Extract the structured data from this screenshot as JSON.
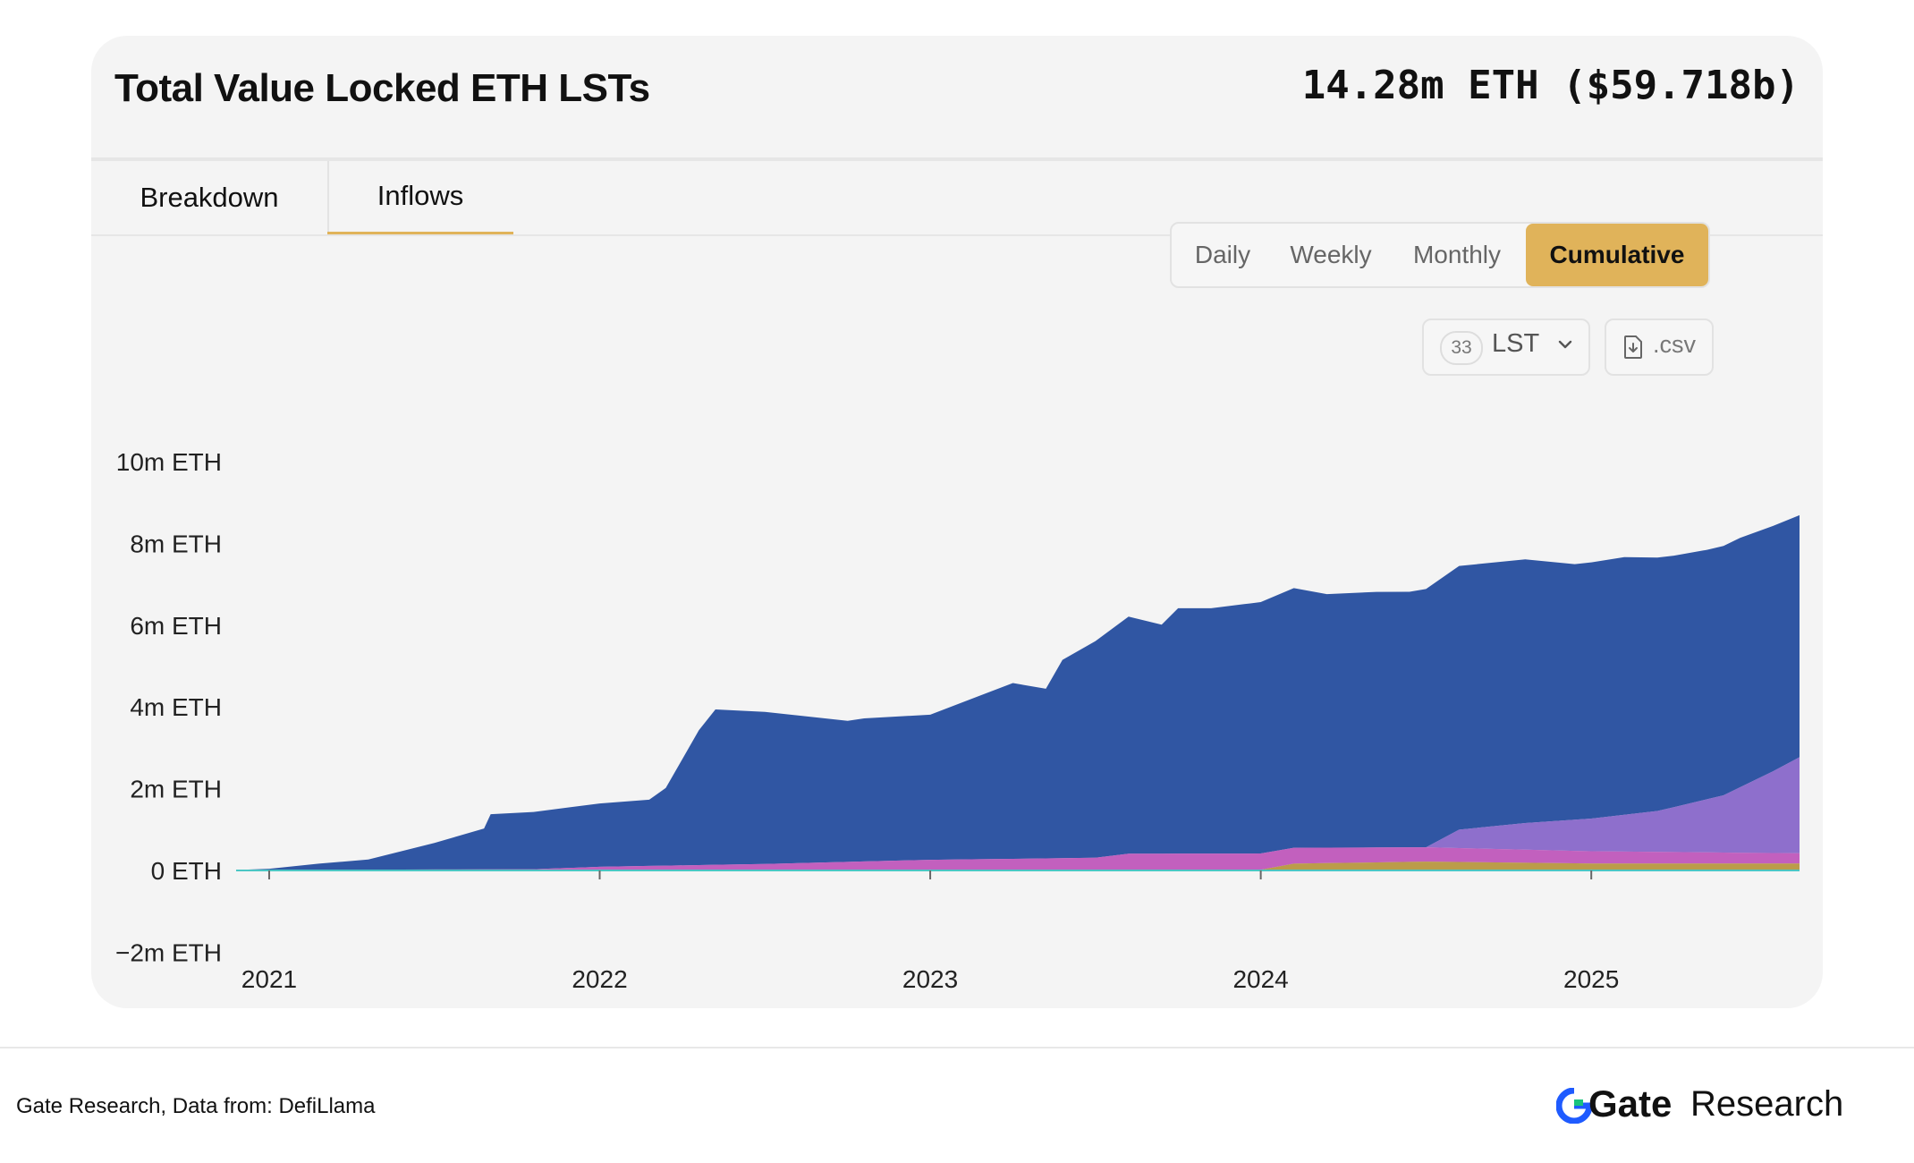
{
  "header": {
    "title": "Total Value Locked ETH LSTs",
    "total": "14.28m ETH ($59.718b)"
  },
  "tabs": [
    {
      "label": "Breakdown",
      "active": false
    },
    {
      "label": "Inflows",
      "active": true
    }
  ],
  "period_options": [
    {
      "label": "Daily",
      "active": false
    },
    {
      "label": "Weekly",
      "active": false
    },
    {
      "label": "Monthly",
      "active": false
    },
    {
      "label": "Cumulative",
      "active": true
    }
  ],
  "lst_filter": {
    "count": "33",
    "label": "LST"
  },
  "csv_button": {
    "label": ".csv"
  },
  "footer": {
    "source": "Gate Research, Data from: DefiLlama",
    "brand_gate": "Gate",
    "brand_research": "Research"
  },
  "colors": {
    "accent": "#e0b35a",
    "series_main": "#3056a3",
    "series_purple": "#7b57c4",
    "series_magenta": "#b845b4",
    "series_olive": "#b08c2c",
    "series_teal": "#4bc6c4"
  },
  "chart_data": {
    "type": "area",
    "stacked": true,
    "unit": "ETH",
    "ylim": [
      -2000000,
      10000000
    ],
    "y_ticks": [
      {
        "value": 10000000,
        "label": "10m ETH"
      },
      {
        "value": 8000000,
        "label": "8m ETH"
      },
      {
        "value": 6000000,
        "label": "6m ETH"
      },
      {
        "value": 4000000,
        "label": "4m ETH"
      },
      {
        "value": 2000000,
        "label": "2m ETH"
      },
      {
        "value": 0,
        "label": "0 ETH"
      },
      {
        "value": -2000000,
        "label": "−2m ETH"
      }
    ],
    "x_range": [
      2020.9,
      2025.63
    ],
    "x_ticks": [
      {
        "value": 2021,
        "label": "2021"
      },
      {
        "value": 2022,
        "label": "2022"
      },
      {
        "value": 2023,
        "label": "2023"
      },
      {
        "value": 2024,
        "label": "2024"
      },
      {
        "value": 2025,
        "label": "2025"
      }
    ],
    "grid": false,
    "legend": "none",
    "series": [
      {
        "color": "#3056a3",
        "x": [
          2020.9,
          2021.0,
          2021.15,
          2021.3,
          2021.5,
          2021.65,
          2021.67,
          2021.8,
          2022.0,
          2022.15,
          2022.2,
          2022.3,
          2022.35,
          2022.5,
          2022.75,
          2022.8,
          2023.0,
          2023.15,
          2023.25,
          2023.35,
          2023.4,
          2023.5,
          2023.6,
          2023.7,
          2023.75,
          2023.85,
          2023.95,
          2024.0,
          2024.1,
          2024.2,
          2024.35,
          2024.45,
          2024.6,
          2024.8,
          2024.95,
          2025.1,
          2025.25,
          2025.35,
          2025.45,
          2025.55,
          2025.63
        ],
        "values": [
          0,
          30000,
          150000,
          250000,
          650000,
          1000000,
          1350000,
          1400000,
          1550000,
          1620000,
          1900000,
          3300000,
          3800000,
          3720000,
          3450000,
          3500000,
          3550000,
          4000000,
          4300000,
          4150000,
          4850000,
          5300000,
          5800000,
          5600000,
          6000000,
          6000000,
          6100000,
          6150000,
          6350000,
          6200000,
          6250000,
          6250000,
          6450000,
          6450000,
          6250000,
          6300000,
          6150000,
          6100000,
          6100000,
          6000000,
          5920000
        ]
      },
      {
        "color": "#7b57c4",
        "x": [
          2020.9,
          2024.5,
          2024.6,
          2024.8,
          2025.0,
          2025.2,
          2025.4,
          2025.55,
          2025.63
        ],
        "values": [
          0,
          0,
          450000,
          650000,
          800000,
          1000000,
          1400000,
          2000000,
          2350000
        ]
      },
      {
        "color": "#b845b4",
        "x": [
          2020.9,
          2021.8,
          2022.0,
          2022.5,
          2023.0,
          2023.5,
          2023.6,
          2024.0,
          2024.5,
          2025.0,
          2025.63
        ],
        "values": [
          0,
          20000,
          80000,
          150000,
          250000,
          300000,
          400000,
          400000,
          350000,
          300000,
          250000
        ]
      },
      {
        "color": "#b08c2c",
        "x": [
          2020.9,
          2024.0,
          2024.1,
          2024.5,
          2025.0,
          2025.63
        ],
        "values": [
          0,
          0,
          150000,
          200000,
          150000,
          150000
        ]
      },
      {
        "color": "#4bc6c4",
        "x": [
          2020.9,
          2023.5,
          2024.0,
          2025.0,
          2025.63
        ],
        "values": [
          10000,
          10000,
          15000,
          20000,
          20000
        ]
      }
    ]
  }
}
